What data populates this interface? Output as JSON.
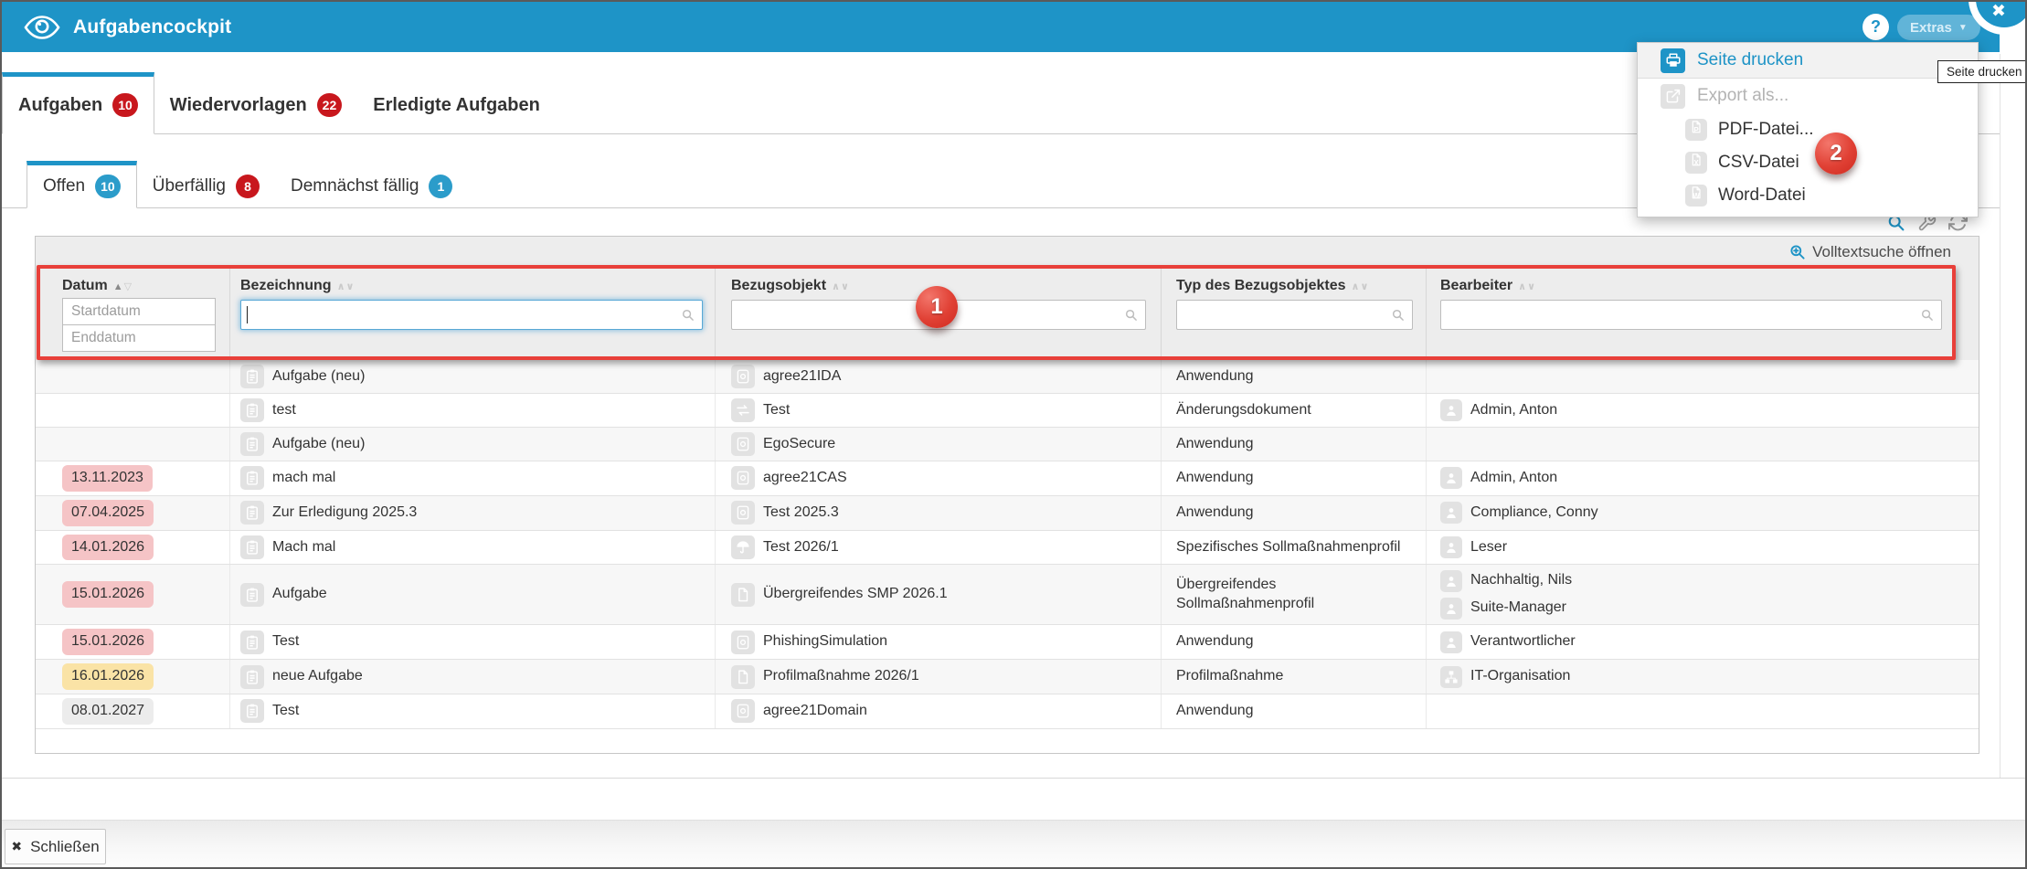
{
  "window": {
    "title": "Aufgabencockpit"
  },
  "icons": {
    "help": "?",
    "close": "✖",
    "caret_down": "▼",
    "button_close_x": "✖",
    "sort_asc_active": "▲",
    "sort_desc_inactive": "▽",
    "sort_up_inactive": "∧",
    "sort_down_inactive": "∨"
  },
  "header": {
    "extras_label": "Extras"
  },
  "tabs": [
    {
      "label": "Aufgaben",
      "badge": "10",
      "badge_color": "#c8171d",
      "active": true
    },
    {
      "label": "Wiedervorlagen",
      "badge": "22",
      "badge_color": "#c8171d",
      "active": false
    },
    {
      "label": "Erledigte Aufgaben",
      "badge": null,
      "active": false
    }
  ],
  "subtabs": [
    {
      "label": "Offen",
      "badge": "10",
      "badge_color": "#2b9cca",
      "active": true
    },
    {
      "label": "Überfällig",
      "badge": "8",
      "badge_color": "#c8171d",
      "active": false
    },
    {
      "label": "Demnächst fällig",
      "badge": "1",
      "badge_color": "#2b9cca",
      "active": false
    }
  ],
  "panel": {
    "fulltext_link": "Volltextsuche öffnen"
  },
  "table": {
    "columns": [
      {
        "label": "Datum",
        "sort": "asc-active"
      },
      {
        "label": "Bezeichnung",
        "sort": "inactive"
      },
      {
        "label": "Bezugsobjekt",
        "sort": "inactive"
      },
      {
        "label": "Typ des Bezugsobjektes",
        "sort": "inactive"
      },
      {
        "label": "Bearbeiter",
        "sort": "inactive"
      }
    ],
    "filters": {
      "startdatum_placeholder": "Startdatum",
      "enddatum_placeholder": "Enddatum",
      "bezeichnung_value": "",
      "bezugsobjekt_value": "",
      "typ_value": "",
      "bearbeiter_value": ""
    },
    "rows": [
      {
        "datum": "",
        "datum_style": "none",
        "bezeichnung": "Aufgabe (neu)",
        "bezeichnung_icon": "task-icon",
        "bezugsobjekt": "agree21IDA",
        "bezugsobjekt_icon": "application-icon",
        "typ": "Anwendung",
        "bearbeiter": []
      },
      {
        "datum": "",
        "datum_style": "none",
        "bezeichnung": "test",
        "bezeichnung_icon": "task-icon",
        "bezugsobjekt": "Test",
        "bezugsobjekt_icon": "change-document-icon",
        "typ": "Änderungsdokument",
        "bearbeiter": [
          {
            "name": "Admin, Anton",
            "icon": "person-icon"
          }
        ]
      },
      {
        "datum": "",
        "datum_style": "none",
        "bezeichnung": "Aufgabe (neu)",
        "bezeichnung_icon": "task-icon",
        "bezugsobjekt": "EgoSecure",
        "bezugsobjekt_icon": "application-icon",
        "typ": "Anwendung",
        "bearbeiter": []
      },
      {
        "datum": "13.11.2023",
        "datum_style": "overdue",
        "bezeichnung": "mach mal",
        "bezeichnung_icon": "task-icon",
        "bezugsobjekt": "agree21CAS",
        "bezugsobjekt_icon": "application-icon",
        "typ": "Anwendung",
        "bearbeiter": [
          {
            "name": "Admin, Anton",
            "icon": "person-icon"
          }
        ]
      },
      {
        "datum": "07.04.2025",
        "datum_style": "overdue",
        "bezeichnung": "Zur Erledigung 2025.3",
        "bezeichnung_icon": "task-icon",
        "bezugsobjekt": "Test 2025.3",
        "bezugsobjekt_icon": "application-icon",
        "typ": "Anwendung",
        "bearbeiter": [
          {
            "name": "Compliance, Conny",
            "icon": "person-icon"
          }
        ]
      },
      {
        "datum": "14.01.2026",
        "datum_style": "overdue",
        "bezeichnung": "Mach mal",
        "bezeichnung_icon": "task-icon",
        "bezugsobjekt": "Test 2026/1",
        "bezugsobjekt_icon": "umbrella-icon",
        "typ": "Spezifisches Sollmaßnahmenprofil",
        "bearbeiter": [
          {
            "name": "Leser",
            "icon": "person-icon"
          }
        ]
      },
      {
        "datum": "15.01.2026",
        "datum_style": "overdue",
        "bezeichnung": "Aufgabe",
        "bezeichnung_icon": "task-icon",
        "bezugsobjekt": "Übergreifendes SMP 2026.1",
        "bezugsobjekt_icon": "document-icon",
        "typ": "Übergreifendes Sollmaßnahmenprofil",
        "bearbeiter": [
          {
            "name": "Nachhaltig, Nils",
            "icon": "person-icon"
          },
          {
            "name": "Suite-Manager",
            "icon": "person-icon"
          }
        ]
      },
      {
        "datum": "15.01.2026",
        "datum_style": "overdue",
        "bezeichnung": "Test",
        "bezeichnung_icon": "task-icon",
        "bezugsobjekt": "PhishingSimulation",
        "bezugsobjekt_icon": "application-icon",
        "typ": "Anwendung",
        "bearbeiter": [
          {
            "name": "Verantwortlicher",
            "icon": "person-icon"
          }
        ]
      },
      {
        "datum": "16.01.2026",
        "datum_style": "due-soon",
        "bezeichnung": "neue Aufgabe",
        "bezeichnung_icon": "task-icon",
        "bezugsobjekt": "Profilmaßnahme 2026/1",
        "bezugsobjekt_icon": "document-icon",
        "typ": "Profilmaßnahme",
        "bearbeiter": [
          {
            "name": "IT-Organisation",
            "icon": "organisation-icon"
          }
        ]
      },
      {
        "datum": "08.01.2027",
        "datum_style": "neutral",
        "bezeichnung": "Test",
        "bezeichnung_icon": "task-icon",
        "bezugsobjekt": "agree21Domain",
        "bezugsobjekt_icon": "application-icon",
        "typ": "Anwendung",
        "bearbeiter": []
      }
    ]
  },
  "menu": {
    "print_label": "Seite drucken",
    "export_label": "Export als...",
    "export_options": [
      {
        "label": "PDF-Datei...",
        "icon": "pdf-file-icon",
        "letter": "P"
      },
      {
        "label": "CSV-Datei",
        "icon": "csv-file-icon",
        "letter": "X"
      },
      {
        "label": "Word-Datei",
        "icon": "word-file-icon",
        "letter": "W"
      }
    ]
  },
  "tooltip": {
    "text": "Seite drucken"
  },
  "annotations": {
    "step1": "1",
    "step2": "2"
  },
  "footer": {
    "close_button": "Schließen"
  },
  "colors": {
    "header_blue": "#1e94c7",
    "accent_blue": "#1d93c6",
    "badge_red": "#c8171d",
    "badge_blue": "#2b9cca",
    "annotation_red": "#e8403a",
    "overdue_pink": "#f5c4c6",
    "due_soon_yellow": "#fae3a6",
    "neutral_gray": "#ececec"
  }
}
